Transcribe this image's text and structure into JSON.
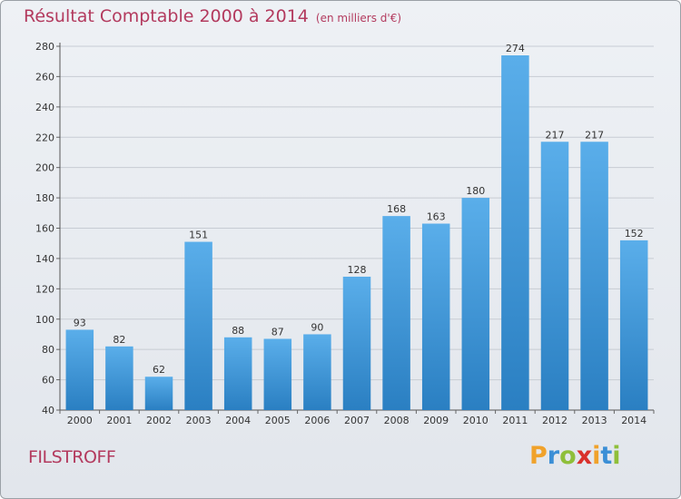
{
  "title": "Résultat Comptable 2000 à 2014",
  "subtitle": "(en milliers d'€)",
  "commune": "FILSTROFF",
  "brand": {
    "letters": [
      "P",
      "r",
      "o",
      "x",
      "i",
      "t",
      "i"
    ],
    "colors": [
      "#f0a22b",
      "#3b8fd6",
      "#8fbf3a",
      "#d9302b",
      "#f0a22b",
      "#3b8fd6",
      "#8fbf3a"
    ]
  },
  "colors": {
    "title": "#b33a5e",
    "bar_top": "#5aaeea",
    "bar_bottom": "#2a7fc2",
    "grid": "#c7ccd3"
  },
  "chart_data": {
    "type": "bar",
    "categories": [
      "2000",
      "2001",
      "2002",
      "2003",
      "2004",
      "2005",
      "2006",
      "2007",
      "2008",
      "2009",
      "2010",
      "2011",
      "2012",
      "2013",
      "2014"
    ],
    "values": [
      93,
      82,
      62,
      151,
      88,
      87,
      90,
      128,
      168,
      163,
      180,
      274,
      217,
      217,
      152
    ],
    "title": "Résultat Comptable 2000 à 2014",
    "xlabel": "",
    "ylabel": "",
    "ylim": [
      40,
      280
    ],
    "yticks": [
      40,
      60,
      80,
      100,
      120,
      140,
      160,
      180,
      200,
      220,
      240,
      260,
      280
    ],
    "grid": true,
    "data_labels": true
  }
}
